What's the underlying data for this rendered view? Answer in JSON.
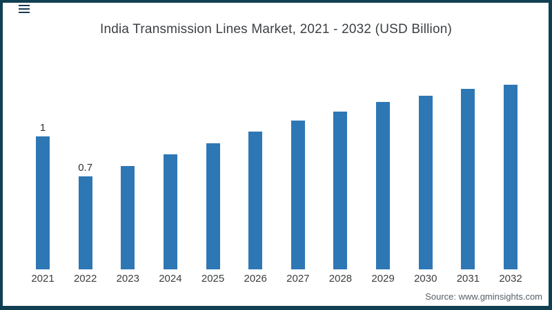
{
  "frame": {
    "border_color": "#113f52",
    "background": "#ffffff"
  },
  "menu_icon": {
    "color": "#1b3a50"
  },
  "chart_data": {
    "type": "bar",
    "title": "India Transmission Lines Market, 2021 - 2032 (USD Billion)",
    "categories": [
      "2021",
      "2022",
      "2023",
      "2024",
      "2025",
      "2026",
      "2027",
      "2028",
      "2029",
      "2030",
      "2031",
      "2032"
    ],
    "values": [
      1.0,
      0.7,
      0.78,
      0.87,
      0.95,
      1.04,
      1.12,
      1.19,
      1.26,
      1.31,
      1.36,
      1.39
    ],
    "data_labels": {
      "2021": "1",
      "2022": "0.7"
    },
    "bar_color": "#2e77b5",
    "xlabel": "",
    "ylabel": "",
    "ylim": [
      0,
      1.5
    ],
    "grid": false,
    "legend": false
  },
  "source": {
    "label": "Source: www.gminsights.com"
  }
}
